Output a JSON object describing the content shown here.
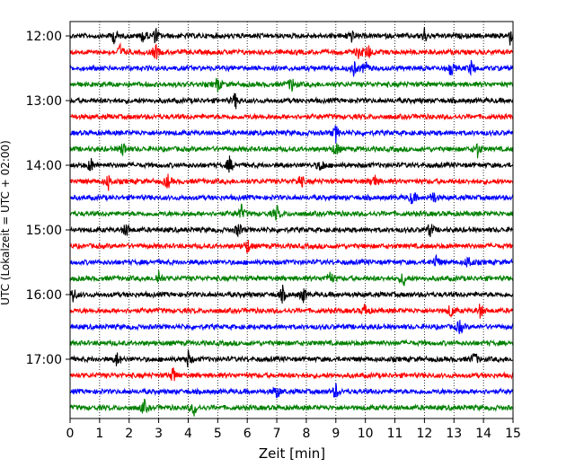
{
  "chart_data": {
    "type": "line",
    "title": "",
    "xlabel": "Zeit  [min]",
    "ylabel": "UTC (Lokalzeit = UTC + 02:00)",
    "xlim": [
      0,
      15
    ],
    "x_ticks": [
      0,
      1,
      2,
      3,
      4,
      5,
      6,
      7,
      8,
      9,
      10,
      11,
      12,
      13,
      14,
      15
    ],
    "y_tick_labels": [
      "12:00",
      "13:00",
      "14:00",
      "15:00",
      "16:00",
      "17:00"
    ],
    "y_tick_rows": [
      0,
      4,
      8,
      12,
      16,
      20
    ],
    "grid": "vertical-dotted",
    "color_cycle": [
      "#000000",
      "#ff0000",
      "#0000ff",
      "#008000"
    ],
    "traces": [
      {
        "start": "12:00",
        "color": "#000000",
        "events": [
          1.5,
          2.5,
          2.9,
          9.5,
          12.0,
          14.9
        ]
      },
      {
        "start": "12:15",
        "color": "#ff0000",
        "events": [
          1.7,
          2.9,
          9.8,
          10.1
        ]
      },
      {
        "start": "12:30",
        "color": "#0000ff",
        "events": [
          9.6,
          10.0,
          12.9,
          13.6
        ]
      },
      {
        "start": "12:45",
        "color": "#008000",
        "events": [
          5.0,
          7.5
        ]
      },
      {
        "start": "13:00",
        "color": "#000000",
        "events": [
          5.6
        ]
      },
      {
        "start": "13:15",
        "color": "#ff0000",
        "events": []
      },
      {
        "start": "13:30",
        "color": "#0000ff",
        "events": [
          9.0
        ]
      },
      {
        "start": "13:45",
        "color": "#008000",
        "events": [
          1.8,
          9.0,
          13.8
        ]
      },
      {
        "start": "14:00",
        "color": "#000000",
        "events": [
          0.7,
          5.4,
          8.5
        ]
      },
      {
        "start": "14:15",
        "color": "#ff0000",
        "events": [
          1.3,
          3.3,
          7.8,
          10.3
        ]
      },
      {
        "start": "14:30",
        "color": "#0000ff",
        "events": [
          11.6,
          12.3
        ]
      },
      {
        "start": "14:45",
        "color": "#008000",
        "events": [
          5.8,
          7.0
        ]
      },
      {
        "start": "15:00",
        "color": "#000000",
        "events": [
          1.9,
          5.7,
          12.2
        ]
      },
      {
        "start": "15:15",
        "color": "#ff0000",
        "events": [
          6.0
        ]
      },
      {
        "start": "15:30",
        "color": "#0000ff",
        "events": [
          12.4,
          13.5
        ]
      },
      {
        "start": "15:45",
        "color": "#008000",
        "events": [
          3.0,
          8.8,
          11.3
        ]
      },
      {
        "start": "16:00",
        "color": "#000000",
        "events": [
          0.1,
          7.2,
          7.9
        ]
      },
      {
        "start": "16:15",
        "color": "#ff0000",
        "events": [
          10.0,
          12.9,
          13.9
        ]
      },
      {
        "start": "16:30",
        "color": "#0000ff",
        "events": [
          13.2
        ]
      },
      {
        "start": "16:45",
        "color": "#008000",
        "events": []
      },
      {
        "start": "17:00",
        "color": "#000000",
        "events": [
          1.6,
          4.0,
          13.7
        ]
      },
      {
        "start": "17:15",
        "color": "#ff0000",
        "events": [
          3.5
        ]
      },
      {
        "start": "17:30",
        "color": "#0000ff",
        "events": [
          7.0,
          9.0
        ]
      },
      {
        "start": "17:45",
        "color": "#008000",
        "events": [
          2.5,
          4.2
        ]
      }
    ]
  }
}
